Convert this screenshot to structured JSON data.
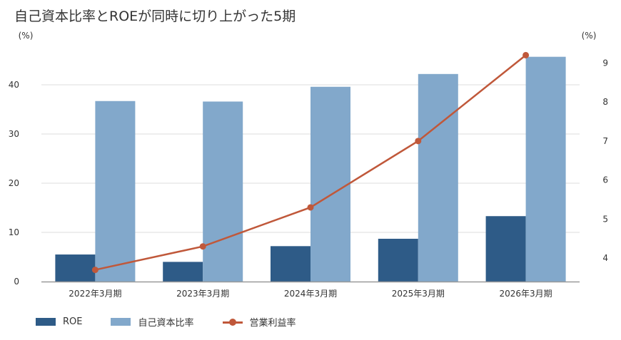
{
  "title": "自己資本比率とROEが同時に切り上がった5期",
  "colors": {
    "roe": "#2e5b87",
    "equity": "#82a8cb",
    "margin": "#c0583a",
    "grid": "#dddddd",
    "axis": "#999999"
  },
  "legend": {
    "roe": "ROE",
    "equity": "自己資本比率",
    "margin": "営業利益率"
  },
  "chart_data": {
    "type": "bar",
    "categories": [
      "2022年3月期",
      "2023年3月期",
      "2024年3月期",
      "2025年3月期",
      "2026年3月期"
    ],
    "series": [
      {
        "name": "ROE",
        "type": "bar",
        "axis": "left",
        "values": [
          5.5,
          4.0,
          7.2,
          8.7,
          13.3
        ]
      },
      {
        "name": "自己資本比率",
        "type": "bar",
        "axis": "left",
        "values": [
          36.7,
          36.6,
          39.6,
          42.2,
          45.7
        ]
      },
      {
        "name": "営業利益率",
        "type": "line",
        "axis": "right",
        "values": [
          3.7,
          4.3,
          5.3,
          7.0,
          9.2
        ]
      }
    ],
    "y_left": {
      "unit": "(%)",
      "ylim": [
        0,
        50
      ],
      "ticks": [
        0,
        10,
        20,
        30,
        40
      ]
    },
    "y_right": {
      "unit": "(%)",
      "ylim": [
        3.4,
        9.7
      ],
      "ticks": [
        4,
        5,
        6,
        7,
        8,
        9
      ]
    },
    "grid": true,
    "legend_position": "bottom-left"
  }
}
